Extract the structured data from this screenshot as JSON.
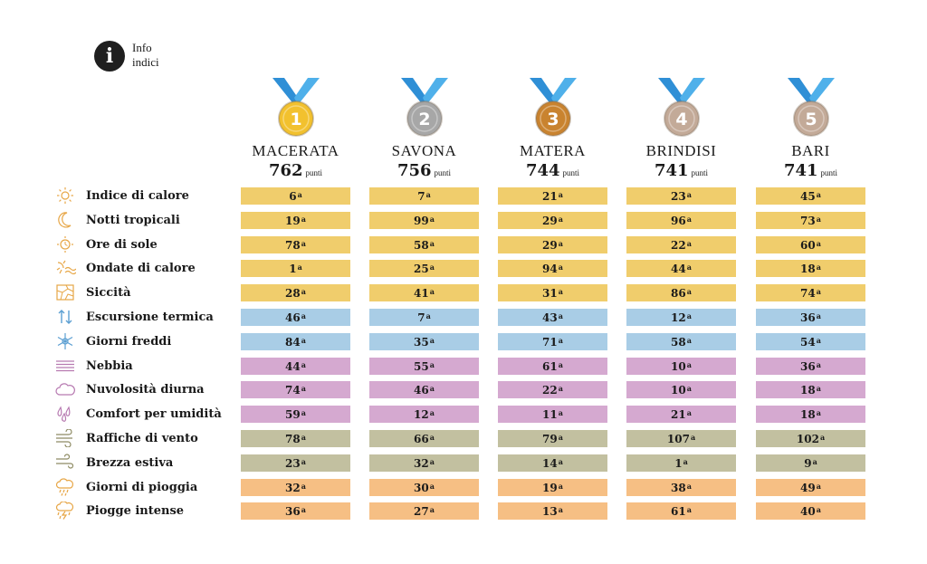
{
  "info": {
    "icon": "info-icon",
    "line1": "Info",
    "line2": "indici"
  },
  "chart_data": {
    "type": "table",
    "score_unit": "punti",
    "rank_suffix": "a",
    "cities": [
      {
        "name": "MACERATA",
        "score": 762,
        "medal_number": "1",
        "medal_color": "#f2c12e"
      },
      {
        "name": "SAVONA",
        "score": 756,
        "medal_number": "2",
        "medal_color": "#a7a7a7"
      },
      {
        "name": "MATERA",
        "score": 744,
        "medal_number": "3",
        "medal_color": "#c9832f"
      },
      {
        "name": "BRINDISI",
        "score": 741,
        "medal_number": "4",
        "medal_color": "#c3aa98"
      },
      {
        "name": "BARI",
        "score": 741,
        "medal_number": "5",
        "medal_color": "#c3aa98"
      }
    ],
    "indices": [
      {
        "label": "Indice di calore",
        "icon": "sun-heat-icon",
        "color": "#f0cd6c",
        "ranks": [
          6,
          7,
          21,
          23,
          45
        ]
      },
      {
        "label": "Notti tropicali",
        "icon": "moon-icon",
        "color": "#f0cd6c",
        "ranks": [
          19,
          99,
          29,
          96,
          73
        ]
      },
      {
        "label": "Ore di sole",
        "icon": "sun-icon",
        "color": "#f0cd6c",
        "ranks": [
          78,
          58,
          29,
          22,
          60
        ]
      },
      {
        "label": "Ondate di calore",
        "icon": "heatwave-icon",
        "color": "#f0cd6c",
        "ranks": [
          1,
          25,
          94,
          44,
          18
        ]
      },
      {
        "label": "Siccità",
        "icon": "drought-icon",
        "color": "#f0cd6c",
        "ranks": [
          28,
          41,
          31,
          86,
          74
        ]
      },
      {
        "label": "Escursione termica",
        "icon": "temp-range-icon",
        "color": "#a9cde6",
        "ranks": [
          46,
          7,
          43,
          12,
          36
        ]
      },
      {
        "label": "Giorni freddi",
        "icon": "snowflake-icon",
        "color": "#a9cde6",
        "ranks": [
          84,
          35,
          71,
          58,
          54
        ]
      },
      {
        "label": "Nebbia",
        "icon": "fog-icon",
        "color": "#d5a9d0",
        "ranks": [
          44,
          55,
          61,
          10,
          36
        ]
      },
      {
        "label": "Nuvolosità diurna",
        "icon": "cloud-icon",
        "color": "#d5a9d0",
        "ranks": [
          74,
          46,
          22,
          10,
          18
        ]
      },
      {
        "label": "Comfort per umidità",
        "icon": "humidity-icon",
        "color": "#d5a9d0",
        "ranks": [
          59,
          12,
          11,
          21,
          18
        ]
      },
      {
        "label": "Raffiche di vento",
        "icon": "wind-gust-icon",
        "color": "#c2c0a0",
        "ranks": [
          78,
          66,
          79,
          107,
          102
        ]
      },
      {
        "label": "Brezza estiva",
        "icon": "breeze-icon",
        "color": "#c2c0a0",
        "ranks": [
          23,
          32,
          14,
          1,
          9
        ]
      },
      {
        "label": "Giorni di pioggia",
        "icon": "rain-cloud-icon",
        "color": "#f6bf84",
        "ranks": [
          32,
          30,
          19,
          38,
          49
        ]
      },
      {
        "label": "Piogge intense",
        "icon": "storm-icon",
        "color": "#f6bf84",
        "ranks": [
          36,
          27,
          13,
          61,
          40
        ]
      }
    ]
  }
}
